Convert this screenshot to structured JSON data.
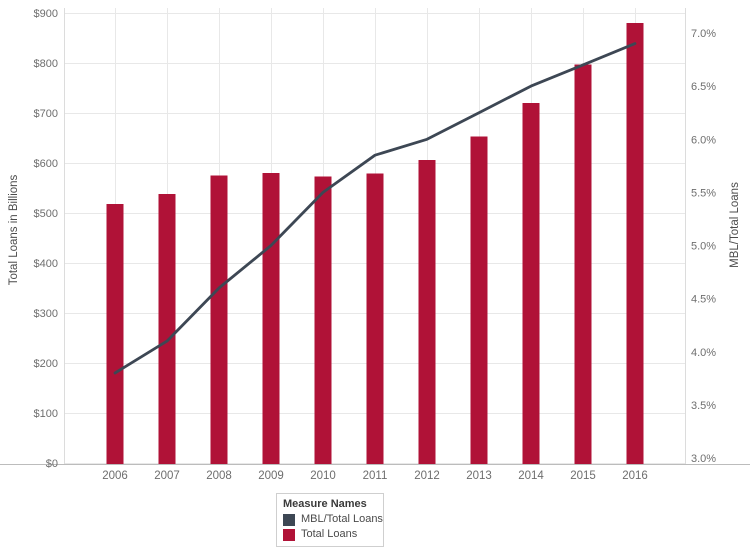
{
  "chart": {
    "left_axis": {
      "title": "Total Loans in Billions",
      "tick_values": [
        0,
        100,
        200,
        300,
        400,
        500,
        600,
        700,
        800,
        900
      ],
      "tick_labels": [
        "$0",
        "$100",
        "$200",
        "$300",
        "$400",
        "$500",
        "$600",
        "$700",
        "$800",
        "$900"
      ]
    },
    "right_axis": {
      "title": "MBL/Total Loans",
      "tick_values": [
        3.0,
        3.5,
        4.0,
        4.5,
        5.0,
        5.5,
        6.0,
        6.5,
        7.0
      ],
      "tick_labels": [
        "3.0%",
        "3.5%",
        "4.0%",
        "4.5%",
        "5.0%",
        "5.5%",
        "6.0%",
        "6.5%",
        "7.0%"
      ]
    },
    "legend": {
      "title": "Measure Names",
      "items": [
        {
          "label": "MBL/Total Loans",
          "color": "#3D4754"
        },
        {
          "label": "Total Loans",
          "color": "#B01237"
        }
      ]
    }
  },
  "chart_data": {
    "type": "combo",
    "categories": [
      "2006",
      "2007",
      "2008",
      "2009",
      "2010",
      "2011",
      "2012",
      "2013",
      "2014",
      "2015",
      "2016"
    ],
    "series": [
      {
        "name": "Total Loans",
        "type": "bar",
        "axis": "left",
        "color": "#B01237",
        "values": [
          518,
          538,
          575,
          580,
          573,
          579,
          606,
          653,
          720,
          797,
          880
        ]
      },
      {
        "name": "MBL/Total Loans",
        "type": "line",
        "axis": "right",
        "color": "#3D4754",
        "values": [
          3.8,
          4.1,
          4.6,
          5.0,
          5.5,
          5.85,
          6.0,
          6.25,
          6.5,
          6.7,
          6.9
        ]
      }
    ],
    "title": "",
    "xlabel": "",
    "ylabel_left": "Total Loans in Billions",
    "ylabel_right": "MBL/Total Loans",
    "ylim_left": [
      0,
      900
    ],
    "ylim_right": [
      3.0,
      7.0
    ],
    "grid": true,
    "legend_position": "bottom",
    "colors": {
      "grid": "#e8e8e8",
      "pane_border": "#dcdcdc",
      "axis_line": "#bcbcbc",
      "tick_text": "#6e6e6e"
    }
  }
}
